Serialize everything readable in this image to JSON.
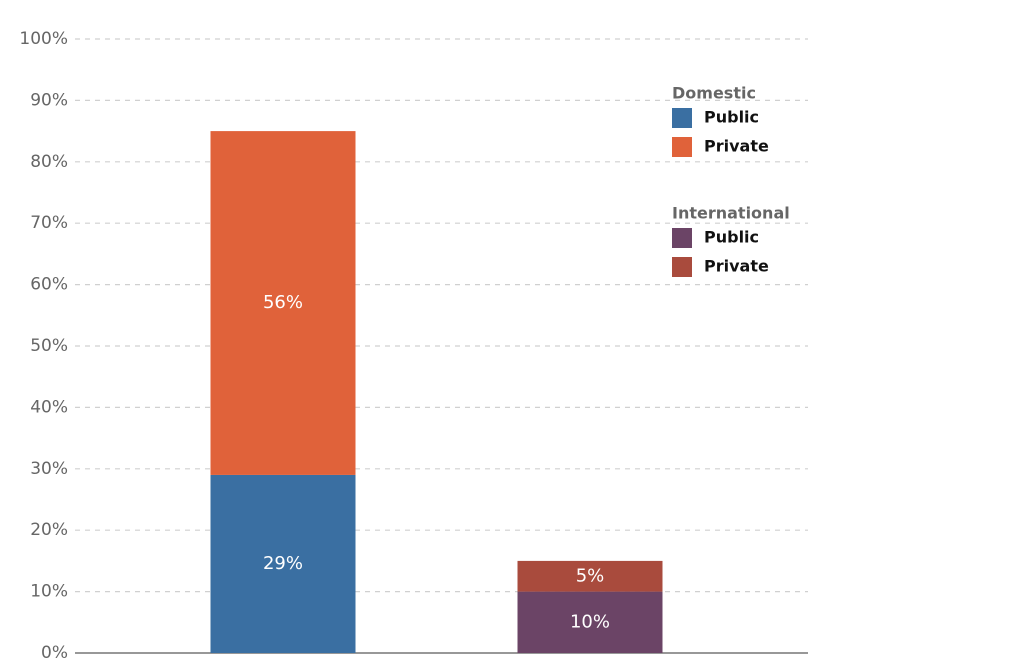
{
  "chart_data": {
    "type": "stacked_bar",
    "categories": [
      null,
      null
    ],
    "ylim": [
      0,
      100
    ],
    "yticks": [
      {
        "value": 0,
        "label": "0%"
      },
      {
        "value": 10,
        "label": "10%"
      },
      {
        "value": 20,
        "label": "20%"
      },
      {
        "value": 30,
        "label": "30%"
      },
      {
        "value": 40,
        "label": "40%"
      },
      {
        "value": 50,
        "label": "50%"
      },
      {
        "value": 60,
        "label": "60%"
      },
      {
        "value": 70,
        "label": "70%"
      },
      {
        "value": 80,
        "label": "80%"
      },
      {
        "value": 90,
        "label": "90%"
      },
      {
        "value": 100,
        "label": "100%"
      }
    ],
    "grid": true,
    "legend_position": "upper right",
    "groups": [
      {
        "name": "Domestic",
        "series": [
          {
            "name": "Public",
            "color": "#3a6fa2",
            "values": [
              29,
              null
            ],
            "value_labels": [
              "29%",
              null
            ]
          },
          {
            "name": "Private",
            "color": "#e0623a",
            "values": [
              56,
              null
            ],
            "value_labels": [
              "56%",
              null
            ]
          }
        ]
      },
      {
        "name": "International",
        "series": [
          {
            "name": "Public",
            "color": "#6b4466",
            "values": [
              null,
              10
            ],
            "value_labels": [
              null,
              "10%"
            ]
          },
          {
            "name": "Private",
            "color": "#a94b3d",
            "values": [
              null,
              5
            ],
            "value_labels": [
              null,
              "5%"
            ]
          }
        ]
      }
    ]
  }
}
